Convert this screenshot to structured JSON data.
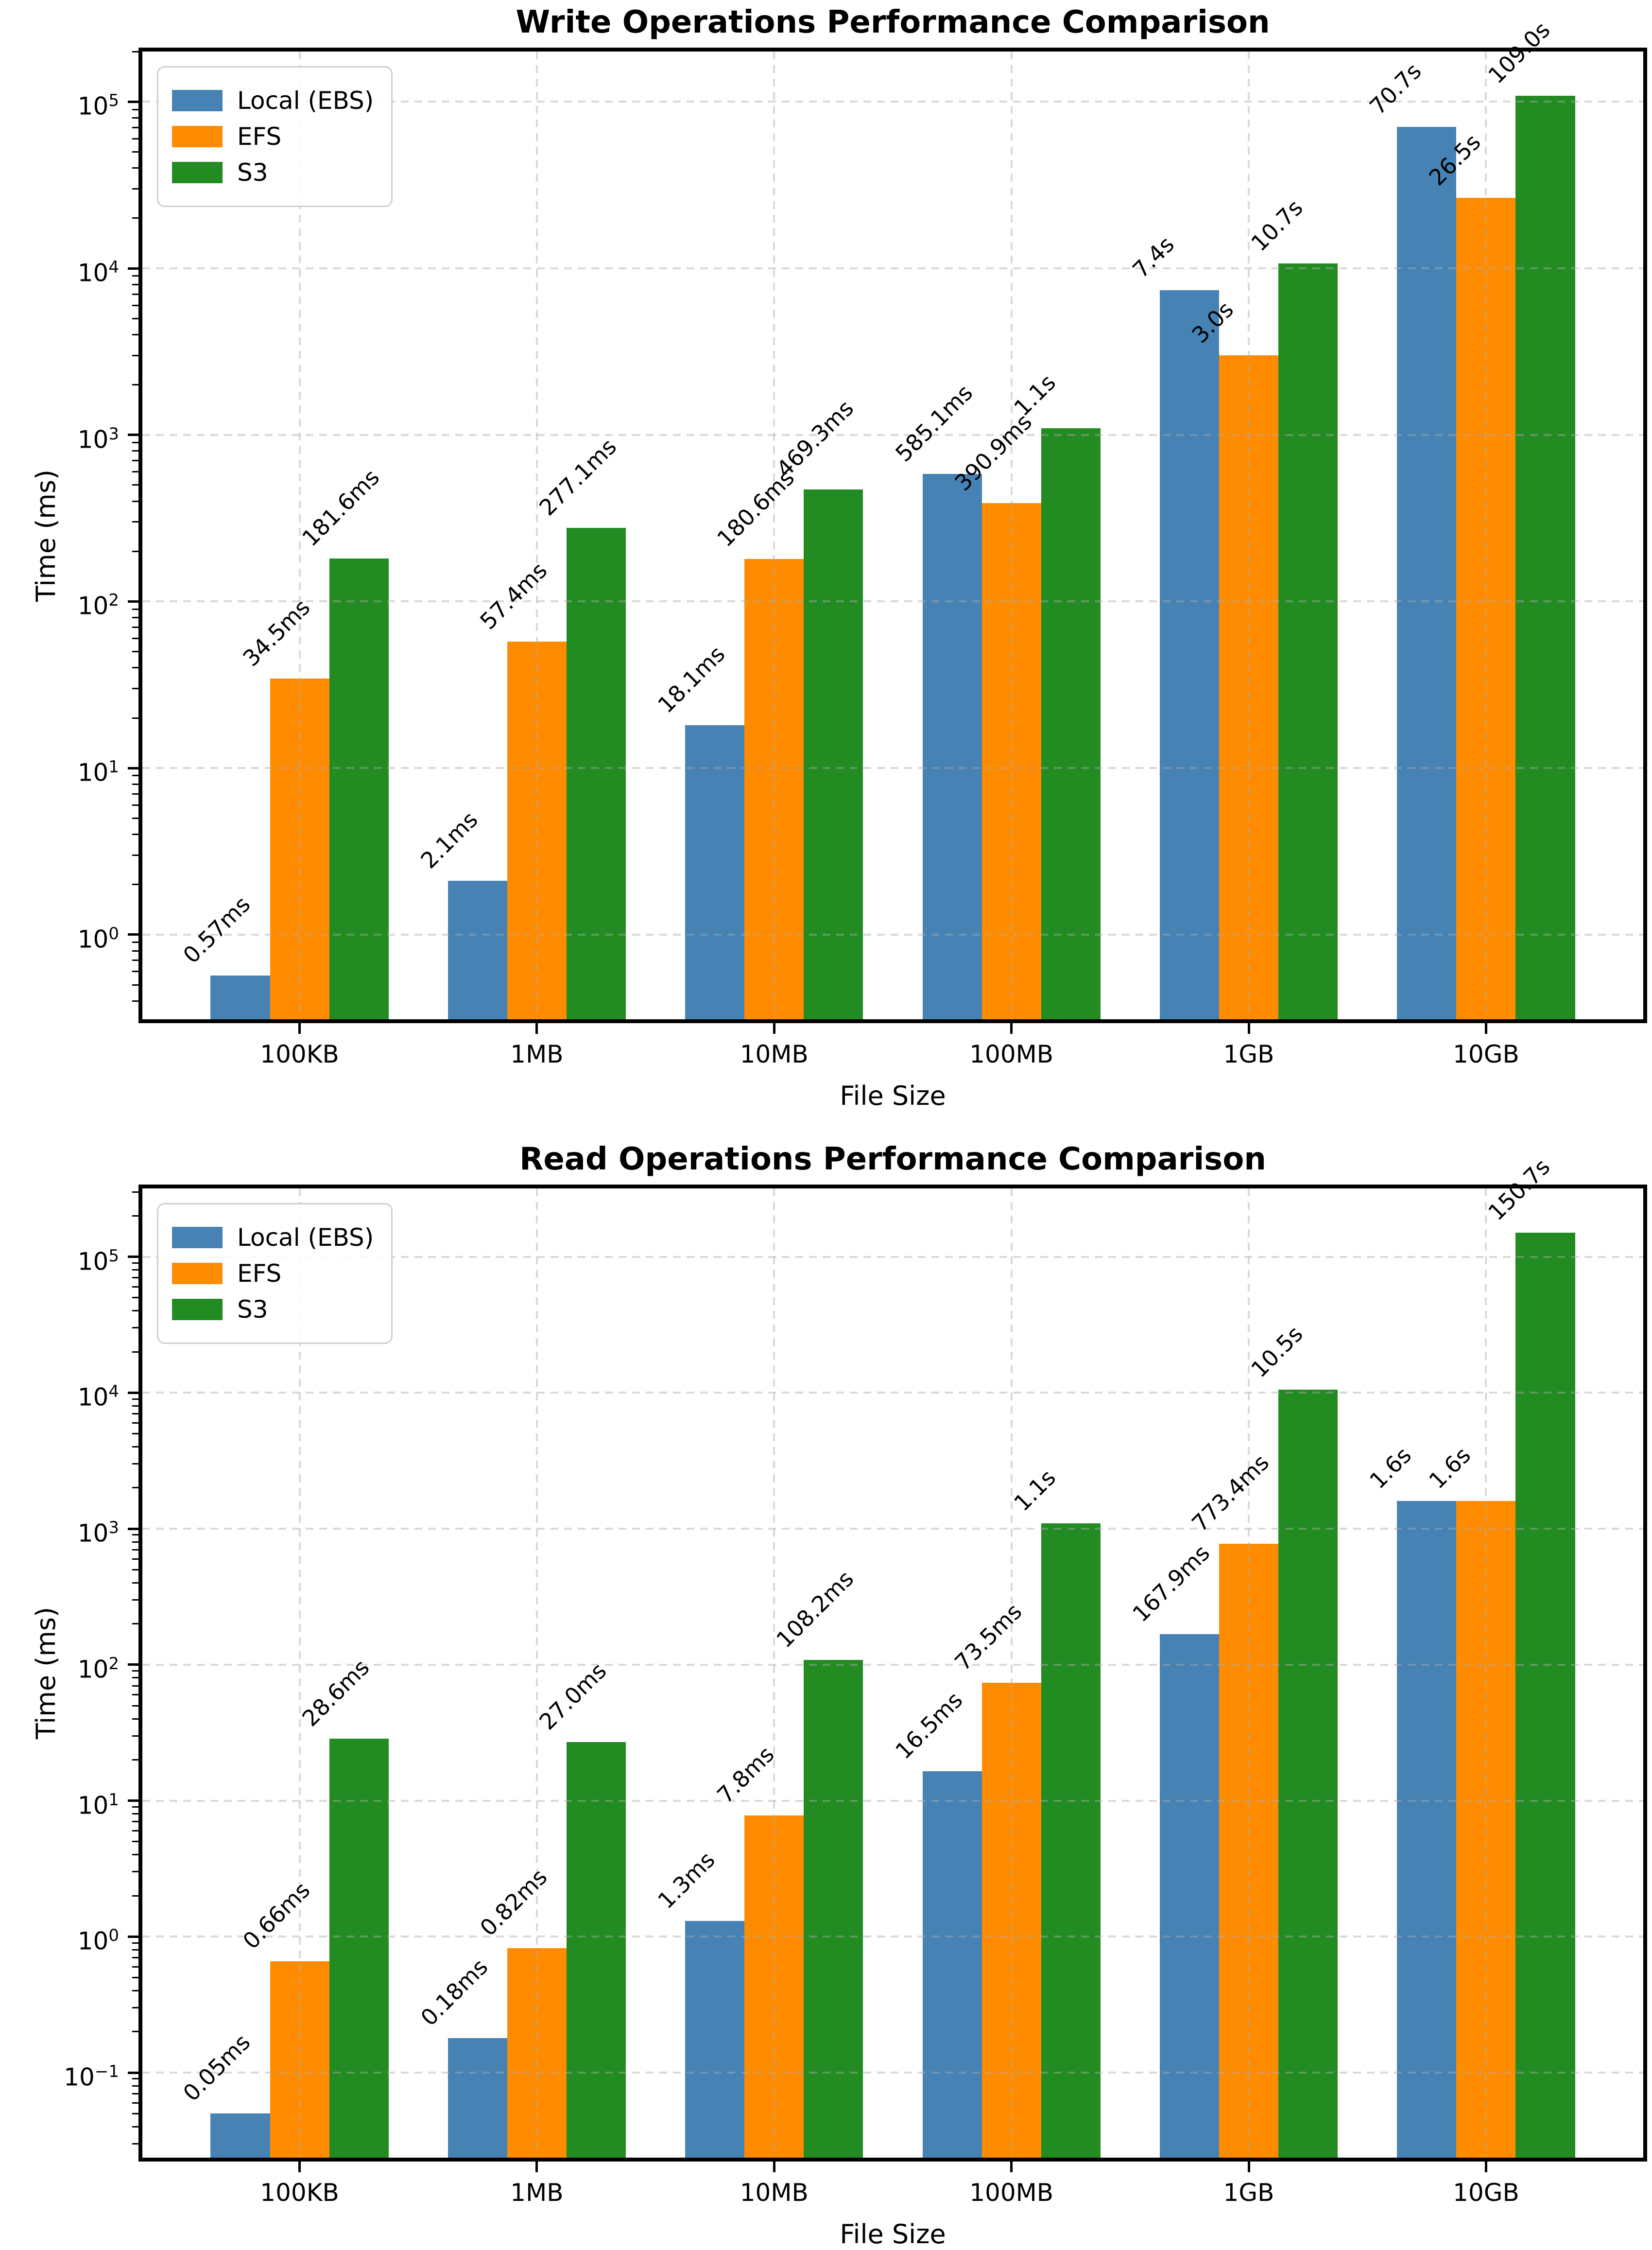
{
  "colors": {
    "local_ebs": "#4682B4",
    "efs": "#FF8C00",
    "s3": "#228B22",
    "grid": "#aaaaaa",
    "spine": "#000000",
    "background": "#ffffff"
  },
  "legend": {
    "items": [
      {
        "label": "Local (EBS)",
        "color": "#4682B4"
      },
      {
        "label": "EFS",
        "color": "#FF8C00"
      },
      {
        "label": "S3",
        "color": "#228B22"
      }
    ]
  },
  "chart_data": [
    {
      "type": "bar",
      "title": "Write Operations Performance Comparison",
      "xlabel": "File Size",
      "ylabel": "Time (ms)",
      "yscale": "log",
      "grid": true,
      "legend_position": "upper-left",
      "ylim": [
        0.3104,
        200300
      ],
      "categories": [
        "100KB",
        "1MB",
        "10MB",
        "100MB",
        "1GB",
        "10GB"
      ],
      "yticks": [
        {
          "exponent": 0,
          "display": "0"
        },
        {
          "exponent": 1,
          "display": "1"
        },
        {
          "exponent": 2,
          "display": "2"
        },
        {
          "exponent": 3,
          "display": "3"
        },
        {
          "exponent": 4,
          "display": "4"
        },
        {
          "exponent": 5,
          "display": "5"
        }
      ],
      "series": [
        {
          "name": "Local (EBS)",
          "color": "#4682B4",
          "values_ms": [
            0.57,
            2.1,
            18.1,
            585.1,
            7400,
            70700
          ],
          "labels": [
            "0.57ms",
            "2.1ms",
            "18.1ms",
            "585.1ms",
            "7.4s",
            "70.7s"
          ]
        },
        {
          "name": "EFS",
          "color": "#FF8C00",
          "values_ms": [
            34.5,
            57.4,
            180.6,
            390.9,
            3000,
            26500
          ],
          "labels": [
            "34.5ms",
            "57.4ms",
            "180.6ms",
            "390.9ms",
            "3.0s",
            "26.5s"
          ]
        },
        {
          "name": "S3",
          "color": "#228B22",
          "values_ms": [
            181.6,
            277.1,
            469.3,
            1100,
            10700,
            109000
          ],
          "labels": [
            "181.6ms",
            "277.1ms",
            "469.3ms",
            "1.1s",
            "10.7s",
            "109.0s"
          ]
        }
      ]
    },
    {
      "type": "bar",
      "title": "Read Operations Performance Comparison",
      "xlabel": "File Size",
      "ylabel": "Time (ms)",
      "yscale": "log",
      "grid": true,
      "legend_position": "upper-left",
      "ylim": [
        0.0237,
        318000
      ],
      "categories": [
        "100KB",
        "1MB",
        "10MB",
        "100MB",
        "1GB",
        "10GB"
      ],
      "yticks": [
        {
          "exponent": -1,
          "display": "−1"
        },
        {
          "exponent": 0,
          "display": "0"
        },
        {
          "exponent": 1,
          "display": "1"
        },
        {
          "exponent": 2,
          "display": "2"
        },
        {
          "exponent": 3,
          "display": "3"
        },
        {
          "exponent": 4,
          "display": "4"
        },
        {
          "exponent": 5,
          "display": "5"
        }
      ],
      "series": [
        {
          "name": "Local (EBS)",
          "color": "#4682B4",
          "values_ms": [
            0.05,
            0.18,
            1.3,
            16.5,
            167.9,
            1600
          ],
          "labels": [
            "0.05ms",
            "0.18ms",
            "1.3ms",
            "16.5ms",
            "167.9ms",
            "1.6s"
          ]
        },
        {
          "name": "EFS",
          "color": "#FF8C00",
          "values_ms": [
            0.66,
            0.82,
            7.8,
            73.5,
            773.4,
            1600
          ],
          "labels": [
            "0.66ms",
            "0.82ms",
            "7.8ms",
            "73.5ms",
            "773.4ms",
            "1.6s"
          ]
        },
        {
          "name": "S3",
          "color": "#228B22",
          "values_ms": [
            28.6,
            27.0,
            108.2,
            1100,
            10500,
            150700
          ],
          "labels": [
            "28.6ms",
            "27.0ms",
            "108.2ms",
            "1.1s",
            "10.5s",
            "150.7s"
          ]
        }
      ]
    }
  ]
}
